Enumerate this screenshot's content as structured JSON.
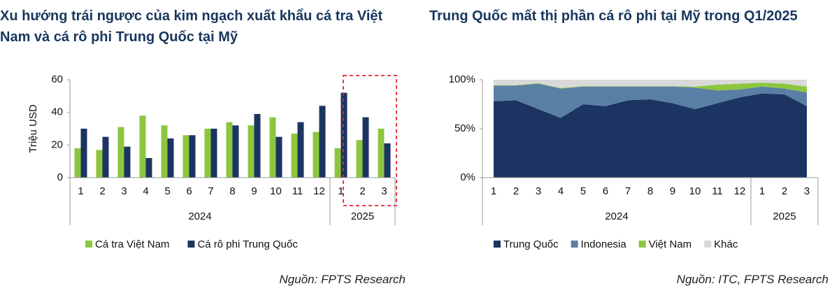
{
  "chart_data": [
    {
      "type": "bar",
      "title": "Xu hướng trái ngược của kim ngạch xuất khẩu cá tra Việt Nam và cá rô phi Trung Quốc tại Mỹ",
      "y_label": "Triệu USD",
      "source": "Nguồn: FPTS Research",
      "categories": [
        "1",
        "2",
        "3",
        "4",
        "5",
        "6",
        "7",
        "8",
        "9",
        "10",
        "11",
        "12",
        "1",
        "2",
        "3"
      ],
      "group_labels": [
        "2024",
        "2025"
      ],
      "group_sizes": [
        12,
        3
      ],
      "highlight_categories": [
        13,
        14
      ],
      "series": [
        {
          "name": "Cá tra Việt Nam",
          "color": "#8cc63f",
          "values": [
            18,
            17,
            31,
            38,
            32,
            26,
            30,
            34,
            32,
            37,
            27,
            28,
            18,
            23,
            30
          ]
        },
        {
          "name": "Cá rô phi Trung Quốc",
          "color": "#1c3461",
          "values": [
            30,
            25,
            19,
            12,
            24,
            26,
            30,
            32,
            39,
            25,
            34,
            44,
            52,
            37,
            21
          ]
        }
      ],
      "ylim": [
        0,
        60
      ],
      "yticks": [
        0,
        20,
        40,
        60
      ],
      "grid": false
    },
    {
      "type": "area",
      "title": "Trung Quốc mất thị phần cá rô phi tại Mỹ trong Q1/2025",
      "source": "Nguồn: ITC, FPTS Research",
      "categories": [
        "1",
        "2",
        "3",
        "4",
        "5",
        "6",
        "7",
        "8",
        "9",
        "10",
        "11",
        "12",
        "1",
        "2",
        "3"
      ],
      "group_labels": [
        "2024",
        "2025"
      ],
      "group_sizes": [
        12,
        3
      ],
      "series": [
        {
          "name": "Trung Quốc",
          "color": "#1c3461",
          "values": [
            78,
            79,
            70,
            61,
            75,
            73,
            79,
            80,
            76,
            70,
            76,
            82,
            86,
            85,
            73
          ]
        },
        {
          "name": "Indonesia",
          "color": "#5a7fa5",
          "values": [
            16,
            15,
            26,
            30,
            18,
            20,
            14,
            13,
            17,
            22,
            13,
            8,
            7,
            6,
            14
          ]
        },
        {
          "name": "Việt Nam",
          "color": "#8cc63f",
          "values": [
            0.5,
            0.5,
            0.5,
            0.5,
            0.5,
            0.5,
            0.5,
            0.5,
            0.5,
            1,
            6,
            6,
            4,
            5,
            6
          ]
        },
        {
          "name": "Khác",
          "color": "#d9d9d9",
          "values": [
            5.5,
            5.5,
            3.5,
            8.5,
            6.5,
            6.5,
            6.5,
            6.5,
            6.5,
            7,
            5,
            4,
            3,
            4,
            7
          ]
        }
      ],
      "ylim": [
        0,
        100
      ],
      "yticks": [
        {
          "value": 0,
          "label": "0%"
        },
        {
          "value": 50,
          "label": "50%"
        },
        {
          "value": 100,
          "label": "100%"
        }
      ],
      "grid": false
    }
  ]
}
